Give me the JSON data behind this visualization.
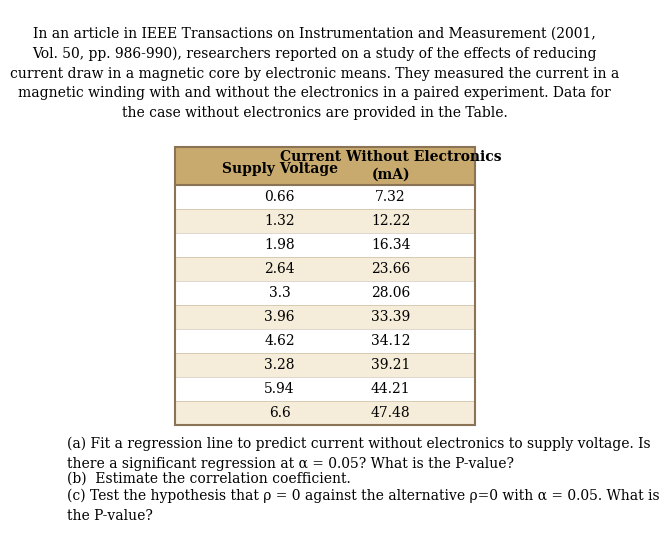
{
  "intro_text": "In an article in IEEE Transactions on Instrumentation and Measurement (2001,\nVol. 50, pp. 986-990), researchers reported on a study of the effects of reducing\ncurrent draw in a magnetic core by electronic means. They measured the current in a\nmagnetic winding with and without the electronics in a paired experiment. Data for\nthe case without electronics are provided in the Table.",
  "col1_header": "Supply Voltage",
  "col2_header_line1": "Current Without Electronics",
  "col2_header_line2": "(mA)",
  "supply_voltage": [
    0.66,
    1.32,
    1.98,
    2.64,
    3.3,
    3.96,
    4.62,
    3.28,
    5.94,
    6.6
  ],
  "current": [
    7.32,
    12.22,
    16.34,
    23.66,
    28.06,
    33.39,
    34.12,
    39.21,
    44.21,
    47.48
  ],
  "header_bg_color": "#C8A96E",
  "row_odd_color": "#FFFFFF",
  "row_even_color": "#F5EDD9",
  "border_color": "#8B7355",
  "text_color": "#000000",
  "header_text_color": "#000000",
  "question_text_a": "(a) Fit a regression line to predict current without electronics to supply voltage. Is\nthere a significant regression at α = 0.05? What is the P-value?",
  "question_text_b": "(b)  Estimate the correlation coefficient.",
  "question_text_c": "(c) Test the hypothesis that ρ = 0 against the alternative ρ=0 with α = 0.05. What is\nthe P-value?",
  "bg_color": "#FFFFFF",
  "font_size_intro": 10,
  "font_size_table": 10,
  "font_size_question": 10
}
